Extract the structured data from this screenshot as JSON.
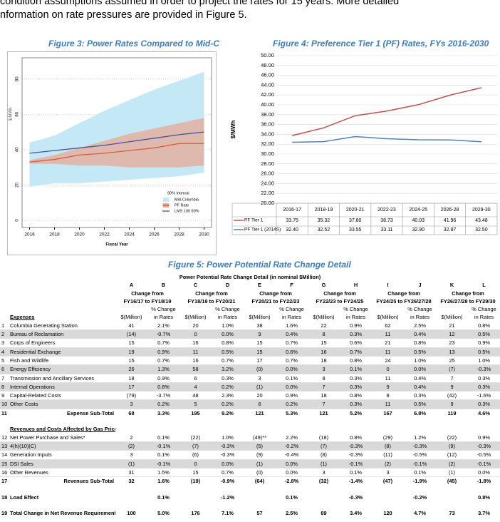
{
  "intro": [
    "condition assumptions assumed in order to project the rates for 15 years. More detailed",
    "nformation on rate pressures are provided in Figure 5."
  ],
  "chart_data": [
    {
      "type": "fan",
      "title": "Figure 3: Power Rates Compared to Mid-C",
      "xlabel": "Fiscal Year",
      "ylabel": "$/MWh",
      "x": [
        2016,
        2018,
        2020,
        2022,
        2024,
        2026,
        2028,
        2030
      ],
      "xlim": [
        2015.4,
        2030.6
      ],
      "xticks": [
        2016,
        2018,
        2020,
        2022,
        2024,
        2026,
        2028,
        2030
      ],
      "ylim": [
        -4,
        92
      ],
      "yticks": [
        0,
        20,
        40,
        60,
        80
      ],
      "grid": true,
      "legend": "lower right",
      "legend_title": "90% Interval",
      "series": [
        {
          "name": "Mid-Columbia",
          "color": "#c5e8f6",
          "lower": [
            19,
            21,
            21,
            22,
            23,
            24,
            25,
            27
          ],
          "upper": [
            44,
            48,
            55,
            62,
            68,
            74,
            79,
            84
          ]
        },
        {
          "name": "PF Rate",
          "color": "#e0573c",
          "band_color": "#e6ab95",
          "lower": [
            32,
            32,
            31,
            31,
            30,
            30,
            30,
            31
          ],
          "upper": [
            34,
            37,
            41,
            45,
            49,
            52,
            55,
            58
          ],
          "values": [
            33,
            34.5,
            37,
            38,
            39.5,
            41,
            43.5,
            43.5
          ]
        },
        {
          "name": "LMS 100 60%",
          "color": "#4b4fa0",
          "values": [
            38,
            39.5,
            41,
            42.5,
            44.5,
            46.5,
            48.5,
            50
          ]
        }
      ]
    },
    {
      "type": "line",
      "title": "Figure 4: Preference Tier 1 (PF) Rates, FYs 2016-2030",
      "ylabel": "$/MWh",
      "categories": [
        "2016-17",
        "2018-19",
        "2020-21",
        "2022-23",
        "2024-25",
        "2026-28",
        "2029-30"
      ],
      "ylim": [
        20,
        50
      ],
      "yticks": [
        {
          "value": 20,
          "label": "20.00"
        },
        {
          "value": 22,
          "label": "22.00"
        },
        {
          "value": 24,
          "label": "24.00"
        },
        {
          "value": 26,
          "label": "26.00"
        },
        {
          "value": 28,
          "label": "28.00"
        },
        {
          "value": 30,
          "label": "30.00"
        },
        {
          "value": 32,
          "label": "32.00"
        },
        {
          "value": 34,
          "label": "34.00"
        },
        {
          "value": 36,
          "label": "36.00"
        },
        {
          "value": 38,
          "label": "38.00"
        },
        {
          "value": 40,
          "label": "40.00"
        },
        {
          "value": 42,
          "label": "42.00"
        },
        {
          "value": 44,
          "label": "44.00"
        },
        {
          "value": 46,
          "label": "46.00"
        },
        {
          "value": 48,
          "label": "48.00"
        },
        {
          "value": 50,
          "label": "50.00"
        }
      ],
      "series": [
        {
          "name": "PF Tier 1",
          "color": "#c0504d",
          "values": [
            33.75,
            35.32,
            37.8,
            38.73,
            40.03,
            41.96,
            43.48
          ],
          "value_labels": [
            "33.75",
            "35.32",
            "37.80",
            "38.73",
            "40.03",
            "41.96",
            "43.48"
          ]
        },
        {
          "name": "PF Tier 1 (2014S)",
          "color": "#4f81bd",
          "values": [
            32.4,
            32.52,
            33.55,
            33.11,
            32.9,
            32.87,
            32.5
          ],
          "value_labels": [
            "32.40",
            "32.52",
            "33.55",
            "33.11",
            "32.90",
            "32.87",
            "32.50"
          ]
        }
      ]
    }
  ],
  "table": {
    "caption": "Figure 5: Power Potential Rate Change Detail",
    "title": "Power Potential Rate Change Detail (in nominal $Million)",
    "letters": [
      "A",
      "B",
      "C",
      "D",
      "E",
      "F",
      "G",
      "H",
      "I",
      "J",
      "K",
      "L"
    ],
    "groups": [
      {
        "from": "Change from",
        "range": "FY16/17 to FY18/19"
      },
      {
        "from": "Change from",
        "range": "FY18/19 to FY20/21"
      },
      {
        "from": "Change from",
        "range": "FY20/21 to FY22/23"
      },
      {
        "from": "Change from",
        "range": "FY22/23 to FY24/25"
      },
      {
        "from": "Change from",
        "range": "FY24/25 to FY26/27/28"
      },
      {
        "from": "Change from",
        "range": "FY26/27/28 to FY29/30"
      }
    ],
    "sub_money": "$(Million)",
    "sub_pct": [
      "% Change",
      "in Rates"
    ],
    "sections": [
      {
        "heading": "Expenses",
        "rows": [
          {
            "num": "1",
            "label": "Columbia Generating Station",
            "cells": [
              "41",
              "2.1%",
              "20",
              "1.0%",
              "38",
              "1.6%",
              "22",
              "0.9%",
              "62",
              "2.5%",
              "21",
              "0.8%"
            ]
          },
          {
            "num": "2",
            "label": "Bureau of Reclamation",
            "cells": [
              "(14)",
              "-0.7%",
              "0",
              "0.0%",
              "9",
              "0.4%",
              "8",
              "0.3%",
              "11",
              "0.4%",
              "12",
              "0.5%"
            ]
          },
          {
            "num": "3",
            "label": "Corps of Engineers",
            "cells": [
              "15",
              "0.7%",
              "16",
              "0.8%",
              "15",
              "0.7%",
              "15",
              "0.6%",
              "21",
              "0.8%",
              "23",
              "0.9%"
            ]
          },
          {
            "num": "4",
            "label": "Residential Exchange",
            "cells": [
              "19",
              "0.9%",
              "11",
              "0.5%",
              "15",
              "0.6%",
              "16",
              "0.7%",
              "11",
              "0.5%",
              "13",
              "0.5%"
            ]
          },
          {
            "num": "5",
            "label": "Fish and Wildlife",
            "cells": [
              "15",
              "0.7%",
              "16",
              "0.7%",
              "17",
              "0.7%",
              "18",
              "0.8%",
              "24",
              "1.0%",
              "25",
              "1.0%"
            ]
          },
          {
            "num": "6",
            "label": "Energy Efficiency",
            "cells": [
              "26",
              "1.3%",
              "58",
              "3.2%",
              "(0)",
              "0.0%",
              "3",
              "0.1%",
              "0",
              "0.0%",
              "(7)",
              "-0.3%"
            ]
          },
          {
            "num": "7",
            "label": "Transmission and Ancillary Services",
            "cells": [
              "18",
              "0.9%",
              "6",
              "0.3%",
              "3",
              "0.1%",
              "8",
              "0.3%",
              "11",
              "0.4%",
              "7",
              "0.3%"
            ]
          },
          {
            "num": "8",
            "label": "Internal Operations",
            "cells": [
              "17",
              "0.8%",
              "4",
              "0.2%",
              "(1)",
              "0.0%",
              "7",
              "0.3%",
              "9",
              "0.4%",
              "9",
              "0.3%"
            ]
          },
          {
            "num": "9",
            "label": "Capital-Related Costs",
            "cells": [
              "(79)",
              "-3.7%",
              "48",
              "2.3%",
              "20",
              "0.9%",
              "18",
              "0.8%",
              "8",
              "0.3%",
              "(42)",
              "-1.6%"
            ]
          },
          {
            "num": "10",
            "label": "Other Costs",
            "cells": [
              "3",
              "0.2%",
              "5",
              "0.2%",
              "6",
              "0.2%",
              "7",
              "0.3%",
              "11",
              "0.5%",
              "9",
              "0.3%"
            ]
          }
        ],
        "total": {
          "num": "11",
          "label": "Expense Sub-Total",
          "cells": [
            "68",
            "3.3%",
            "195",
            "9.2%",
            "121",
            "5.3%",
            "121",
            "5.2%",
            "167",
            "6.8%",
            "119",
            "4.6%"
          ]
        }
      },
      {
        "heading": "Revenues and Costs Affected by Gas Price",
        "rows": [
          {
            "num": "12",
            "label": "Net Power Purchase and Sales*",
            "cells": [
              "2",
              "0.1%",
              "(22)",
              "1.0%",
              "(49)**",
              "2.2%",
              "(18)",
              "0.8%",
              "(29)",
              "1.2%",
              "(22)",
              "0.9%"
            ]
          },
          {
            "num": "13",
            "label": "4(h)(10)(C)",
            "cells": [
              "(2)",
              "-0.1%",
              "(7)",
              "-0.3%",
              "(5)",
              "-0.2%",
              "(7)",
              "-0.3%",
              "(8)",
              "-0.3%",
              "(9)",
              "-0.3%"
            ]
          },
          {
            "num": "14",
            "label": "Generation Inputs",
            "cells": [
              "3",
              "0.1%",
              "(6)",
              "-0.3%",
              "(9)",
              "-0.4%",
              "(8)",
              "-0.3%",
              "(11)",
              "-0.5%",
              "(12)",
              "-0.5%"
            ]
          },
          {
            "num": "15",
            "label": "DSI Sales",
            "cells": [
              "(1)",
              "-0.1%",
              "0",
              "0.0%",
              "(1)",
              "0.0%",
              "(1)",
              "-0.1%",
              "(2)",
              "-0.1%",
              "(2)",
              "-0.1%"
            ]
          },
          {
            "num": "16",
            "label": "Other Revenues",
            "cells": [
              "31",
              "1.5%",
              "15",
              "0.7%",
              "(0)",
              "0.0%",
              "3",
              "0.1%",
              "3",
              "0.1%",
              "(1)",
              "0.0%"
            ]
          }
        ],
        "total": {
          "num": "17",
          "label": "Revenues Sub-Total",
          "cells": [
            "32",
            "1.6%",
            "(19)",
            "-0.9%",
            "(64)",
            "-2.8%",
            "(32)",
            "-1.4%",
            "(47)",
            "-1.9%",
            "(45)",
            "-1.8%"
          ]
        }
      }
    ],
    "load": {
      "num": "18",
      "label": "Load Effect",
      "cells": [
        null,
        "0.1%",
        null,
        "-1.2%",
        null,
        "0.1%",
        null,
        "-0.3%",
        null,
        "-0.2%",
        null,
        "0.8%"
      ]
    },
    "grand": {
      "num": "19",
      "label": "Total Change in Net Revenue Requirement",
      "cells": [
        "100",
        "5.0%",
        "176",
        "7.1%",
        "57",
        "2.5%",
        "89",
        "3.4%",
        "120",
        "4.7%",
        "73",
        "3.7%"
      ]
    }
  }
}
